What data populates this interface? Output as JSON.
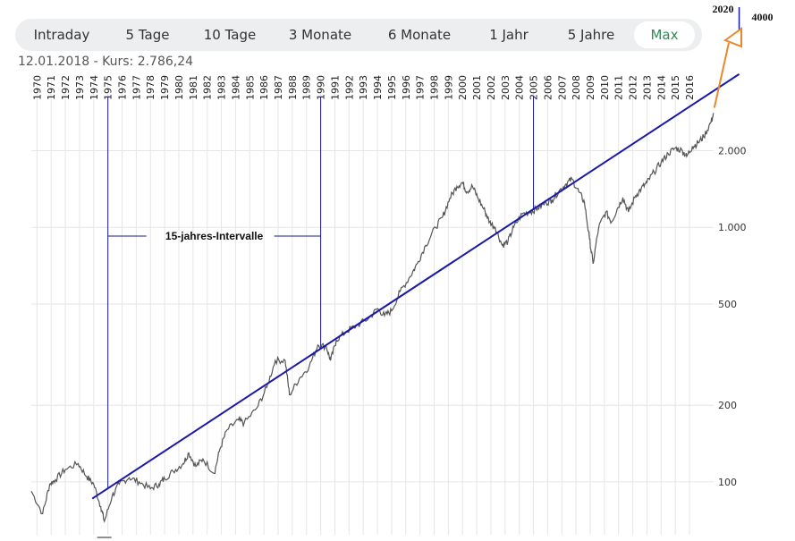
{
  "tabs": [
    {
      "label": "Intraday",
      "active": false
    },
    {
      "label": "5 Tage",
      "active": false
    },
    {
      "label": "10 Tage",
      "active": false
    },
    {
      "label": "3 Monate",
      "active": false
    },
    {
      "label": "6 Monate",
      "active": false
    },
    {
      "label": "1 Jahr",
      "active": false
    },
    {
      "label": "5 Jahre",
      "active": false
    },
    {
      "label": "Max",
      "active": true
    }
  ],
  "quote": {
    "date": "12.01.2018",
    "separator": " - ",
    "label": "Kurs:",
    "value": "2.786,24"
  },
  "colors": {
    "price_line": "#555555",
    "trend_line": "#1a1aa8",
    "annotation_line": "#1a1a8c",
    "arrow": "#e8882a",
    "active_tab": "#2e8b57",
    "grid": "#e6e6e6"
  },
  "chart_data": {
    "type": "line",
    "y_scale": "log",
    "ylim": [
      62,
      3900
    ],
    "xlim": [
      1969.6,
      2017.7
    ],
    "x_tick_labels": [
      "1970",
      "1971",
      "1972",
      "1973",
      "1974",
      "1975",
      "1976",
      "1977",
      "1978",
      "1979",
      "1980",
      "1981",
      "1982",
      "1983",
      "1984",
      "1985",
      "1986",
      "1987",
      "1988",
      "1989",
      "1990",
      "1991",
      "1992",
      "1993",
      "1994",
      "1995",
      "1996",
      "1997",
      "1998",
      "1999",
      "2000",
      "2001",
      "2002",
      "2003",
      "2004",
      "2005",
      "2006",
      "2007",
      "2008",
      "2009",
      "2010",
      "2011",
      "2012",
      "2013",
      "2014",
      "2015",
      "2016"
    ],
    "y_ticks": [
      100,
      200,
      500,
      1000,
      2000
    ],
    "y_tick_labels": [
      "100",
      "200",
      "500",
      "1.000",
      "2.000"
    ],
    "grid": true,
    "series": [
      {
        "x": [
          1969.6,
          1970.4,
          1970.9,
          1971.3,
          1972.0,
          1972.9,
          1973.5,
          1974.0,
          1974.5,
          1974.75,
          1975.3,
          1975.8,
          1976.5,
          1977.2,
          1978.0,
          1978.6,
          1979.0,
          1979.6,
          1980.3,
          1980.7,
          1981.2,
          1981.7,
          1982.5,
          1982.9,
          1983.4,
          1984.2,
          1984.6,
          1985.5,
          1986.2,
          1986.8,
          1987.5,
          1987.8,
          1988.5,
          1989.2,
          1989.8,
          1990.4,
          1990.7,
          1991.1,
          1991.8,
          1992.5,
          1993.4,
          1994.0,
          1994.5,
          1995.0,
          1995.6,
          1996.3,
          1996.8,
          1997.4,
          1998.1,
          1998.6,
          1999.1,
          1999.6,
          2000.0,
          2000.3,
          2000.7,
          2001.1,
          2001.6,
          2001.9,
          2002.3,
          2002.8,
          2003.2,
          2003.6,
          2004.2,
          2004.8,
          2005.3,
          2005.9,
          2006.3,
          2006.8,
          2007.3,
          2007.7,
          2008.2,
          2008.6,
          2008.95,
          2009.2,
          2009.6,
          2010.1,
          2010.5,
          2010.9,
          2011.3,
          2011.7,
          2012.2,
          2012.6,
          2013.0,
          2013.5,
          2014.0,
          2014.5,
          2015.0,
          2015.5,
          2015.8,
          2016.2,
          2016.6,
          2017.0,
          2017.5,
          2017.7
        ],
        "y": [
          92,
          75,
          98,
          102,
          112,
          118,
          105,
          98,
          80,
          70,
          88,
          98,
          104,
          100,
          94,
          98,
          103,
          110,
          118,
          130,
          115,
          123,
          108,
          135,
          160,
          175,
          170,
          195,
          235,
          300,
          300,
          220,
          255,
          285,
          345,
          340,
          300,
          360,
          390,
          410,
          440,
          480,
          450,
          470,
          560,
          640,
          720,
          850,
          1000,
          1100,
          1300,
          1450,
          1500,
          1380,
          1450,
          1300,
          1150,
          1050,
          1000,
          850,
          880,
          1000,
          1130,
          1150,
          1190,
          1250,
          1280,
          1390,
          1480,
          1550,
          1380,
          1250,
          900,
          720,
          1000,
          1150,
          1050,
          1180,
          1310,
          1150,
          1330,
          1420,
          1500,
          1650,
          1800,
          1950,
          2050,
          2000,
          1900,
          2070,
          2150,
          2270,
          2580,
          2786
        ]
      }
    ],
    "trendline": {
      "x": [
        1973.9,
        2019.5
      ],
      "y": [
        86,
        4000
      ]
    },
    "interval_markers": [
      1975,
      1990,
      2005
    ],
    "annotations": {
      "interval_label": "15-jahres-Intervalle",
      "year_label": "2020",
      "value_label": "4000"
    }
  }
}
